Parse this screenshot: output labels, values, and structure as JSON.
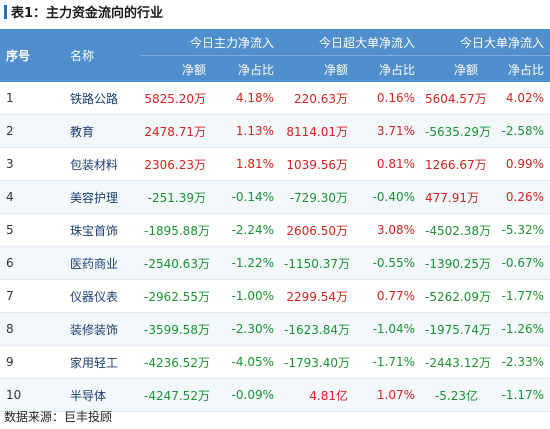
{
  "title": "表1：主力资金流向的行业",
  "header": {
    "col_index": "序号",
    "col_name": "名称",
    "groups": [
      "今日主力净流入",
      "今日超大单净流入",
      "今日大单净流入"
    ],
    "sub_amount": "净额",
    "sub_ratio": "净占比"
  },
  "rows": [
    {
      "idx": "1",
      "name": "铁路公路",
      "cells": [
        {
          "v": "5825.20万",
          "s": "pos"
        },
        {
          "v": "4.18%",
          "s": "pos"
        },
        {
          "v": "220.63万",
          "s": "pos"
        },
        {
          "v": "0.16%",
          "s": "pos"
        },
        {
          "v": "5604.57万",
          "s": "pos"
        },
        {
          "v": "4.02%",
          "s": "pos"
        }
      ]
    },
    {
      "idx": "2",
      "name": "教育",
      "cells": [
        {
          "v": "2478.71万",
          "s": "pos"
        },
        {
          "v": "1.13%",
          "s": "pos"
        },
        {
          "v": "8114.01万",
          "s": "pos"
        },
        {
          "v": "3.71%",
          "s": "pos"
        },
        {
          "v": "-5635.29万",
          "s": "neg"
        },
        {
          "v": "-2.58%",
          "s": "neg"
        }
      ]
    },
    {
      "idx": "3",
      "name": "包装材料",
      "cells": [
        {
          "v": "2306.23万",
          "s": "pos"
        },
        {
          "v": "1.81%",
          "s": "pos"
        },
        {
          "v": "1039.56万",
          "s": "pos"
        },
        {
          "v": "0.81%",
          "s": "pos"
        },
        {
          "v": "1266.67万",
          "s": "pos"
        },
        {
          "v": "0.99%",
          "s": "pos"
        }
      ]
    },
    {
      "idx": "4",
      "name": "美容护理",
      "cells": [
        {
          "v": "-251.39万",
          "s": "neg"
        },
        {
          "v": "-0.14%",
          "s": "neg"
        },
        {
          "v": "-729.30万",
          "s": "neg"
        },
        {
          "v": "-0.40%",
          "s": "neg"
        },
        {
          "v": "477.91万",
          "s": "pos"
        },
        {
          "v": "0.26%",
          "s": "pos"
        }
      ]
    },
    {
      "idx": "5",
      "name": "珠宝首饰",
      "cells": [
        {
          "v": "-1895.88万",
          "s": "neg"
        },
        {
          "v": "-2.24%",
          "s": "neg"
        },
        {
          "v": "2606.50万",
          "s": "pos"
        },
        {
          "v": "3.08%",
          "s": "pos"
        },
        {
          "v": "-4502.38万",
          "s": "neg"
        },
        {
          "v": "-5.32%",
          "s": "neg"
        }
      ]
    },
    {
      "idx": "6",
      "name": "医药商业",
      "cells": [
        {
          "v": "-2540.63万",
          "s": "neg"
        },
        {
          "v": "-1.22%",
          "s": "neg"
        },
        {
          "v": "-1150.37万",
          "s": "neg"
        },
        {
          "v": "-0.55%",
          "s": "neg"
        },
        {
          "v": "-1390.25万",
          "s": "neg"
        },
        {
          "v": "-0.67%",
          "s": "neg"
        }
      ]
    },
    {
      "idx": "7",
      "name": "仪器仪表",
      "cells": [
        {
          "v": "-2962.55万",
          "s": "neg"
        },
        {
          "v": "-1.00%",
          "s": "neg"
        },
        {
          "v": "2299.54万",
          "s": "pos"
        },
        {
          "v": "0.77%",
          "s": "pos"
        },
        {
          "v": "-5262.09万",
          "s": "neg"
        },
        {
          "v": "-1.77%",
          "s": "neg"
        }
      ]
    },
    {
      "idx": "8",
      "name": "装修装饰",
      "cells": [
        {
          "v": "-3599.58万",
          "s": "neg"
        },
        {
          "v": "-2.30%",
          "s": "neg"
        },
        {
          "v": "-1623.84万",
          "s": "neg"
        },
        {
          "v": "-1.04%",
          "s": "neg"
        },
        {
          "v": "-1975.74万",
          "s": "neg"
        },
        {
          "v": "-1.26%",
          "s": "neg"
        }
      ]
    },
    {
      "idx": "9",
      "name": "家用轻工",
      "cells": [
        {
          "v": "-4236.52万",
          "s": "neg"
        },
        {
          "v": "-4.05%",
          "s": "neg"
        },
        {
          "v": "-1793.40万",
          "s": "neg"
        },
        {
          "v": "-1.71%",
          "s": "neg"
        },
        {
          "v": "-2443.12万",
          "s": "neg"
        },
        {
          "v": "-2.33%",
          "s": "neg"
        }
      ]
    },
    {
      "idx": "10",
      "name": "半导体",
      "cells": [
        {
          "v": "-4247.52万",
          "s": "neg"
        },
        {
          "v": "-0.09%",
          "s": "neg"
        },
        {
          "v": "4.81亿",
          "s": "pos"
        },
        {
          "v": "1.07%",
          "s": "pos"
        },
        {
          "v": "-5.23亿",
          "s": "neg"
        },
        {
          "v": "-1.17%",
          "s": "neg"
        }
      ]
    }
  ],
  "source": "数据来源：巨丰投顾",
  "colors": {
    "header_bg": "#4f8fcd",
    "positive": "#d6231c",
    "negative": "#1c9430",
    "name_text": "#1b3f73"
  }
}
